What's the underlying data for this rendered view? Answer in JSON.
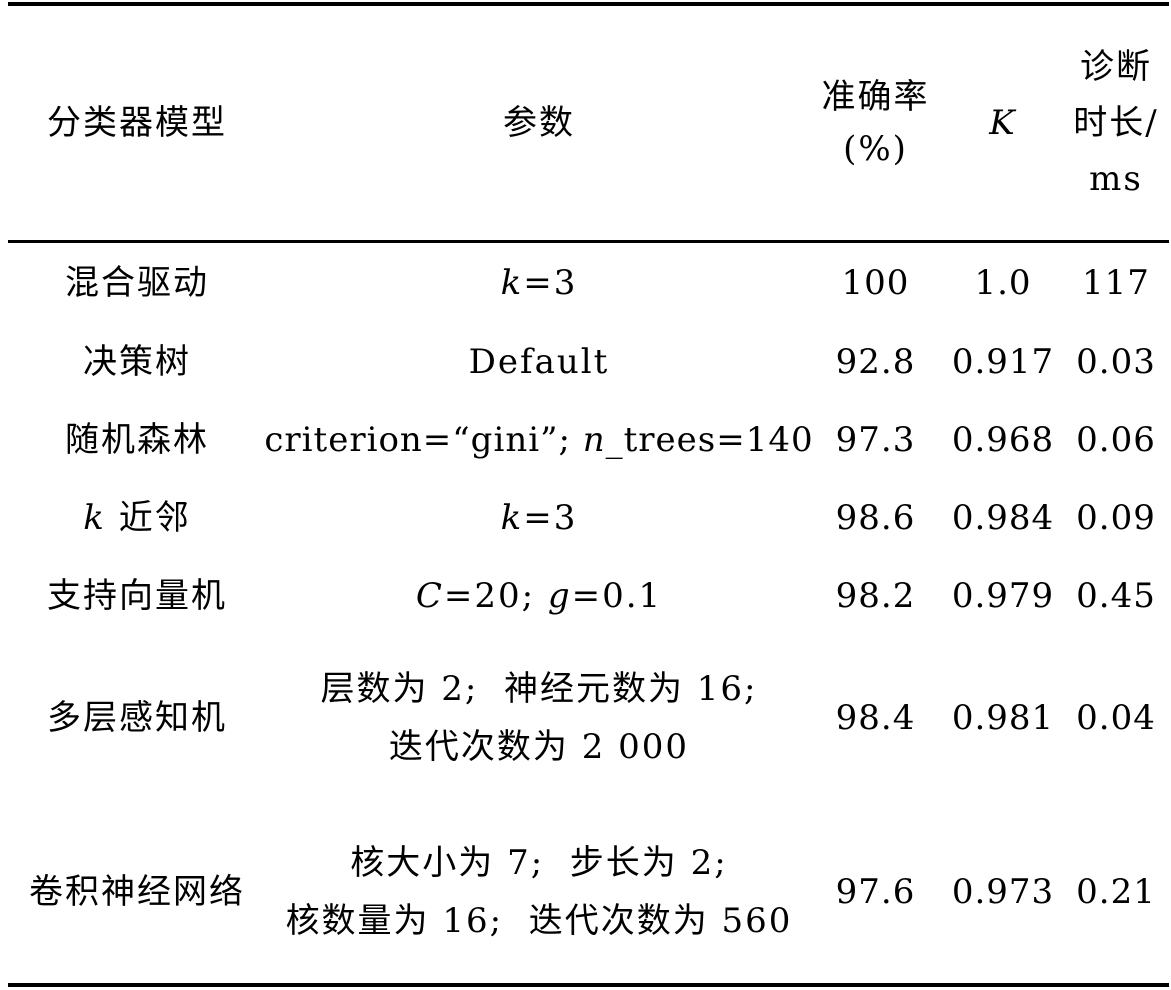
{
  "table": {
    "headers": {
      "model": "分类器模型",
      "params": "参数",
      "accuracy_line1": "准确率",
      "accuracy_line2": "(%)",
      "k": "K",
      "time_line1": "诊断",
      "time_line2": "时长/",
      "time_line3": "ms"
    },
    "rows": [
      {
        "model": "混合驱动",
        "params": [
          {
            "var": "k",
            "rest": "=3"
          }
        ],
        "accuracy": "100",
        "k": "1.0",
        "time": "117"
      },
      {
        "model": "决策树",
        "params_text": "Default",
        "accuracy": "92.8",
        "k": "0.917",
        "time": "0.03"
      },
      {
        "model": "随机森林",
        "params_pre": "criterion=“gini”; ",
        "params_var": "n",
        "params_post": "_trees=140",
        "accuracy": "97.3",
        "k": "0.968",
        "time": "0.06"
      },
      {
        "model_var": "k",
        "model_rest": " 近邻",
        "params_var": "k",
        "params_rest": "=3",
        "accuracy": "98.6",
        "k": "0.984",
        "time": "0.09"
      },
      {
        "model": "支持向量机",
        "params_var1": "C",
        "params_mid": "=20; ",
        "params_var2": "g",
        "params_end": "=0.1",
        "accuracy": "98.2",
        "k": "0.979",
        "time": "0.45"
      },
      {
        "model": "多层感知机",
        "params_line1": "层数为 2;  神经元数为 16;",
        "params_line2": "迭代次数为 2 000",
        "accuracy": "98.4",
        "k": "0.981",
        "time": "0.04"
      },
      {
        "model": "卷积神经网络",
        "params_line1": "核大小为 7;  步长为 2;",
        "params_line2": "核数量为 16;  迭代次数为 560",
        "accuracy": "97.6",
        "k": "0.973",
        "time": "0.21"
      }
    ]
  }
}
